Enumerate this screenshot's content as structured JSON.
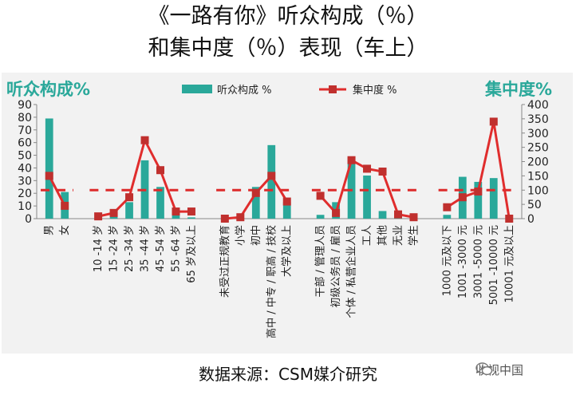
{
  "title_line1": "《一路有你》听众构成（％",
  "title_line1_close": "）",
  "title_line2": "和集中度（％）表现（车上）",
  "source_text": "数据来源：CSM媒介研究",
  "brand_text": "收视中国",
  "brand_icon": "wechat-icon",
  "colors": {
    "bar": "#2aa89a",
    "line": "#e02d2d",
    "marker": "#c0302e",
    "ref": "#dd2b2b",
    "axis_title": "#2aa89a"
  },
  "chart_data": {
    "type": "bar+line",
    "left_axis_title": "听众构成%",
    "right_axis_title": "集中度%",
    "legend": {
      "bar": "听众构成 %",
      "line": "集中度 %"
    },
    "left_ylim": [
      0,
      90
    ],
    "left_ticks": [
      0,
      10,
      20,
      30,
      40,
      50,
      60,
      70,
      80,
      90
    ],
    "right_ylim": [
      0,
      400
    ],
    "right_ticks": [
      0,
      50,
      100,
      150,
      200,
      250,
      300,
      350,
      400
    ],
    "reference_value": 100,
    "groups": [
      {
        "categories": [
          "男",
          "女"
        ],
        "composition": [
          79,
          21
        ],
        "concentration": [
          150,
          45
        ]
      },
      {
        "categories": [
          "10 -14 岁",
          "15 -24 岁",
          "25 -34 岁",
          "35 -44 岁",
          "45 -54 岁",
          "55 -64 岁",
          "65 岁及以上"
        ],
        "composition": [
          0.5,
          2,
          13,
          46,
          25,
          3,
          1
        ],
        "concentration": [
          8,
          20,
          75,
          275,
          170,
          25,
          25
        ]
      },
      {
        "categories": [
          "未受过正规教育",
          "小学",
          "初中",
          "高中 / 中专 / 职高 / 技校",
          "大学及以上"
        ],
        "composition": [
          0,
          0.5,
          25,
          58,
          13
        ],
        "concentration": [
          0,
          5,
          90,
          150,
          60
        ]
      },
      {
        "categories": [
          "干部 / 管理人员",
          "初级公务员 / 雇员",
          "个体 / 私营企业人员",
          "工人",
          "其他",
          "无业",
          "学生"
        ],
        "composition": [
          3,
          13,
          48,
          34,
          6,
          1,
          0.5
        ],
        "concentration": [
          80,
          20,
          205,
          175,
          165,
          15,
          5
        ]
      },
      {
        "categories": [
          "1000 元及以下",
          "1001 -3000 元",
          "3001 -5000 元",
          "5001 -10000 元",
          "10001 元及以上"
        ],
        "composition": [
          3,
          33,
          29,
          32,
          0
        ],
        "concentration": [
          40,
          75,
          95,
          340,
          0
        ]
      }
    ]
  }
}
